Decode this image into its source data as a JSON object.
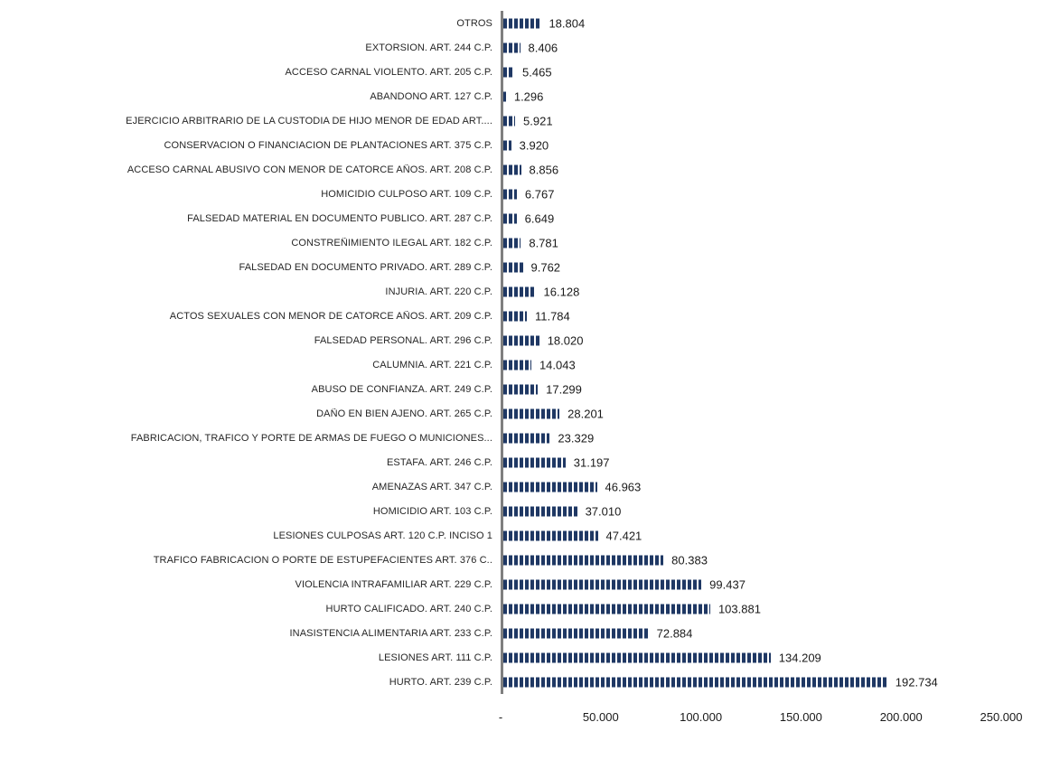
{
  "chart_data": {
    "type": "bar",
    "orientation": "horizontal",
    "title": "",
    "xlabel": "",
    "ylabel": "",
    "xlim": [
      0,
      250000
    ],
    "grid": false,
    "legend": "none",
    "bar_color": "#1f3864",
    "bar_pattern": "vertical-dash-stripes",
    "axis_line_color": "#7f7f7f",
    "x_ticks": [
      {
        "value": 0,
        "label": "-"
      },
      {
        "value": 50000,
        "label": "50.000"
      },
      {
        "value": 100000,
        "label": "100.000"
      },
      {
        "value": 150000,
        "label": "150.000"
      },
      {
        "value": 200000,
        "label": "200.000"
      },
      {
        "value": 250000,
        "label": "250.000"
      }
    ],
    "rows": [
      {
        "category": "OTROS",
        "value": 18804,
        "value_label": "18.804"
      },
      {
        "category": "EXTORSION. ART. 244 C.P.",
        "value": 8406,
        "value_label": "8.406"
      },
      {
        "category": "ACCESO CARNAL VIOLENTO. ART. 205 C.P.",
        "value": 5465,
        "value_label": "5.465"
      },
      {
        "category": "ABANDONO ART. 127 C.P.",
        "value": 1296,
        "value_label": "1.296"
      },
      {
        "category": "EJERCICIO ARBITRARIO DE LA CUSTODIA DE HIJO MENOR DE EDAD ART....",
        "value": 5921,
        "value_label": "5.921"
      },
      {
        "category": "CONSERVACION O FINANCIACION DE PLANTACIONES ART. 375 C.P.",
        "value": 3920,
        "value_label": "3.920"
      },
      {
        "category": "ACCESO CARNAL ABUSIVO CON MENOR DE CATORCE AÑOS. ART. 208 C.P.",
        "value": 8856,
        "value_label": "8.856"
      },
      {
        "category": "HOMICIDIO CULPOSO ART. 109 C.P.",
        "value": 6767,
        "value_label": "6.767"
      },
      {
        "category": "FALSEDAD MATERIAL EN DOCUMENTO PUBLICO. ART. 287 C.P.",
        "value": 6649,
        "value_label": "6.649"
      },
      {
        "category": "CONSTREÑIMIENTO ILEGAL ART. 182 C.P.",
        "value": 8781,
        "value_label": "8.781"
      },
      {
        "category": "FALSEDAD EN DOCUMENTO PRIVADO. ART. 289 C.P.",
        "value": 9762,
        "value_label": "9.762"
      },
      {
        "category": "INJURIA. ART. 220 C.P.",
        "value": 16128,
        "value_label": "16.128"
      },
      {
        "category": "ACTOS SEXUALES CON MENOR DE CATORCE AÑOS. ART. 209 C.P.",
        "value": 11784,
        "value_label": "11.784"
      },
      {
        "category": "FALSEDAD PERSONAL. ART. 296 C.P.",
        "value": 18020,
        "value_label": "18.020"
      },
      {
        "category": "CALUMNIA. ART. 221 C.P.",
        "value": 14043,
        "value_label": "14.043"
      },
      {
        "category": "ABUSO DE CONFIANZA. ART. 249 C.P.",
        "value": 17299,
        "value_label": "17.299"
      },
      {
        "category": "DAÑO EN BIEN AJENO. ART. 265 C.P.",
        "value": 28201,
        "value_label": "28.201"
      },
      {
        "category": "FABRICACION, TRAFICO Y PORTE DE ARMAS DE FUEGO O MUNICIONES...",
        "value": 23329,
        "value_label": "23.329"
      },
      {
        "category": "ESTAFA. ART. 246 C.P.",
        "value": 31197,
        "value_label": "31.197"
      },
      {
        "category": "AMENAZAS ART. 347 C.P.",
        "value": 46963,
        "value_label": "46.963"
      },
      {
        "category": "HOMICIDIO ART. 103 C.P.",
        "value": 37010,
        "value_label": "37.010"
      },
      {
        "category": "LESIONES CULPOSAS ART. 120 C.P. INCISO 1",
        "value": 47421,
        "value_label": "47.421"
      },
      {
        "category": "TRAFICO FABRICACION O PORTE DE ESTUPEFACIENTES ART. 376 C..",
        "value": 80383,
        "value_label": "80.383"
      },
      {
        "category": "VIOLENCIA INTRAFAMILIAR ART. 229 C.P.",
        "value": 99437,
        "value_label": "99.437"
      },
      {
        "category": "HURTO CALIFICADO. ART. 240 C.P.",
        "value": 103881,
        "value_label": "103.881"
      },
      {
        "category": "INASISTENCIA ALIMENTARIA ART. 233 C.P.",
        "value": 72884,
        "value_label": "72.884"
      },
      {
        "category": "LESIONES ART. 111 C.P.",
        "value": 134209,
        "value_label": "134.209"
      },
      {
        "category": "HURTO. ART. 239 C.P.",
        "value": 192734,
        "value_label": "192.734"
      }
    ]
  }
}
